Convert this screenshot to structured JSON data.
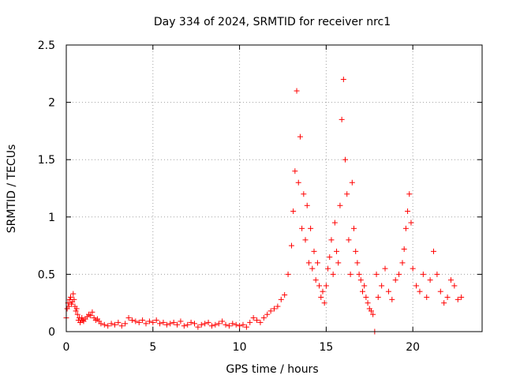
{
  "chart_data": {
    "type": "scatter",
    "title": "Day 334 of 2024, SRMTID for receiver nrc1",
    "xlabel": "GPS time / hours",
    "ylabel": "SRMTID / TECUs",
    "xlim": [
      0,
      24
    ],
    "ylim": [
      0,
      2.5
    ],
    "xticks": [
      0,
      5,
      10,
      15,
      20
    ],
    "yticks": [
      0,
      0.5,
      1,
      1.5,
      2,
      2.5
    ],
    "xtick_labels": [
      "0",
      "5",
      "10",
      "15",
      "20"
    ],
    "ytick_labels": [
      "0",
      "0.5",
      "1",
      "1.5",
      "2",
      "2.5"
    ],
    "grid": true,
    "marker": "plus",
    "marker_color": "#ff0000",
    "series": [
      {
        "name": "SRMTID nrc1",
        "x": [
          0.0,
          0.05,
          0.1,
          0.15,
          0.2,
          0.25,
          0.3,
          0.35,
          0.4,
          0.45,
          0.5,
          0.55,
          0.6,
          0.65,
          0.7,
          0.75,
          0.8,
          0.85,
          0.9,
          0.95,
          1.0,
          1.1,
          1.2,
          1.3,
          1.4,
          1.5,
          1.6,
          1.7,
          1.8,
          1.9,
          2.0,
          2.2,
          2.4,
          2.6,
          2.8,
          3.0,
          3.2,
          3.4,
          3.6,
          3.8,
          4.0,
          4.2,
          4.4,
          4.6,
          4.8,
          5.0,
          5.2,
          5.4,
          5.6,
          5.8,
          6.0,
          6.2,
          6.4,
          6.6,
          6.8,
          7.0,
          7.2,
          7.4,
          7.6,
          7.8,
          8.0,
          8.2,
          8.4,
          8.6,
          8.8,
          9.0,
          9.2,
          9.4,
          9.6,
          9.8,
          10.0,
          10.2,
          10.4,
          10.6,
          10.8,
          11.0,
          11.2,
          11.4,
          11.6,
          11.8,
          12.0,
          12.2,
          12.4,
          12.6,
          12.8,
          13.0,
          13.1,
          13.2,
          13.3,
          13.4,
          13.5,
          13.6,
          13.7,
          13.8,
          13.9,
          14.0,
          14.1,
          14.2,
          14.3,
          14.4,
          14.5,
          14.6,
          14.7,
          14.8,
          14.9,
          15.0,
          15.1,
          15.2,
          15.3,
          15.4,
          15.5,
          15.6,
          15.7,
          15.8,
          15.9,
          16.0,
          16.1,
          16.2,
          16.3,
          16.4,
          16.5,
          16.6,
          16.7,
          16.8,
          16.9,
          17.0,
          17.1,
          17.2,
          17.3,
          17.4,
          17.5,
          17.6,
          17.7,
          17.8,
          17.9,
          18.0,
          18.2,
          18.4,
          18.6,
          18.8,
          19.0,
          19.2,
          19.4,
          19.5,
          19.6,
          19.7,
          19.8,
          19.9,
          20.0,
          20.2,
          20.4,
          20.6,
          20.8,
          21.0,
          21.2,
          21.4,
          21.6,
          21.8,
          22.0,
          22.2,
          22.4,
          22.6,
          22.8
        ],
        "y": [
          0.12,
          0.2,
          0.25,
          0.22,
          0.28,
          0.3,
          0.24,
          0.26,
          0.33,
          0.28,
          0.22,
          0.18,
          0.2,
          0.15,
          0.1,
          0.12,
          0.08,
          0.1,
          0.12,
          0.1,
          0.09,
          0.11,
          0.13,
          0.15,
          0.14,
          0.17,
          0.12,
          0.1,
          0.11,
          0.09,
          0.07,
          0.06,
          0.05,
          0.07,
          0.06,
          0.08,
          0.05,
          0.07,
          0.12,
          0.1,
          0.09,
          0.08,
          0.1,
          0.07,
          0.09,
          0.08,
          0.1,
          0.07,
          0.08,
          0.06,
          0.07,
          0.08,
          0.06,
          0.09,
          0.05,
          0.06,
          0.08,
          0.07,
          0.04,
          0.06,
          0.07,
          0.08,
          0.05,
          0.06,
          0.07,
          0.09,
          0.06,
          0.05,
          0.07,
          0.06,
          0.05,
          0.06,
          0.04,
          0.08,
          0.12,
          0.1,
          0.08,
          0.12,
          0.15,
          0.18,
          0.2,
          0.22,
          0.28,
          0.32,
          0.5,
          0.75,
          1.05,
          1.4,
          2.1,
          1.3,
          1.7,
          0.9,
          1.2,
          0.8,
          1.1,
          0.6,
          0.9,
          0.55,
          0.7,
          0.45,
          0.6,
          0.4,
          0.3,
          0.35,
          0.25,
          0.4,
          0.55,
          0.65,
          0.8,
          0.5,
          0.95,
          0.7,
          0.6,
          1.1,
          1.85,
          2.2,
          1.5,
          1.2,
          0.8,
          0.5,
          1.3,
          0.9,
          0.7,
          0.6,
          0.5,
          0.45,
          0.35,
          0.4,
          0.3,
          0.25,
          0.2,
          0.18,
          0.15,
          0.0,
          0.5,
          0.3,
          0.4,
          0.55,
          0.35,
          0.28,
          0.45,
          0.5,
          0.6,
          0.72,
          0.9,
          1.05,
          1.2,
          0.95,
          0.55,
          0.4,
          0.35,
          0.5,
          0.3,
          0.45,
          0.7,
          0.5,
          0.35,
          0.25,
          0.3,
          0.45,
          0.4,
          0.28,
          0.3
        ]
      }
    ]
  }
}
